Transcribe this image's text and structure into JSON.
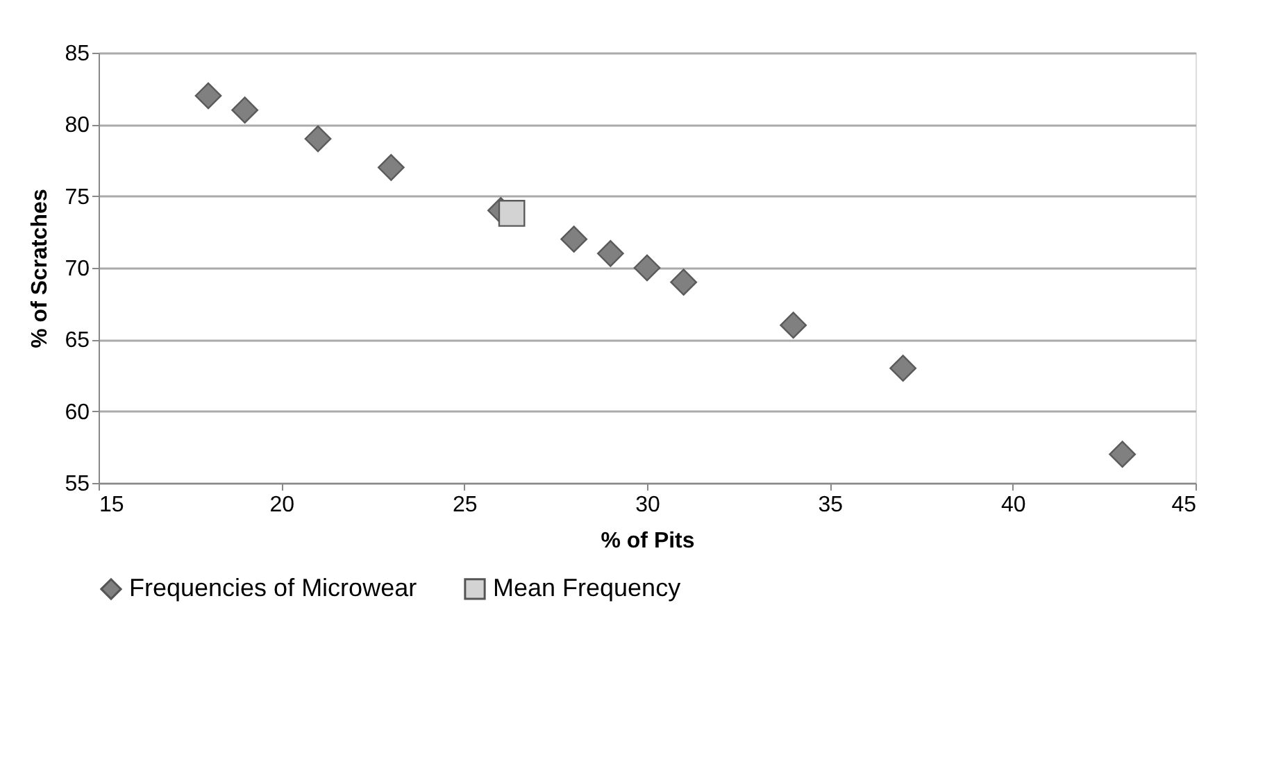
{
  "chart_data": {
    "type": "scatter",
    "xlabel": "% of Pits",
    "ylabel": "% of Scratches",
    "series": [
      {
        "name": "Frequencies of Microwear",
        "color": "#808080",
        "marker": "diamond",
        "x": [
          18,
          19,
          21,
          23,
          26,
          28,
          29,
          30,
          31,
          34,
          37,
          43
        ],
        "values": [
          82,
          81,
          79,
          77,
          74,
          72,
          71,
          70,
          69,
          66,
          63,
          57
        ]
      },
      {
        "name": "Mean Frequency",
        "color": "#d3d3d3",
        "marker": "square",
        "x": [
          26.3
        ],
        "values": [
          73.8
        ]
      }
    ],
    "xlim": [
      15,
      45
    ],
    "xticks": [
      15,
      20,
      25,
      30,
      35,
      40,
      45
    ],
    "ylim": [
      55,
      85
    ],
    "yticks": [
      55,
      60,
      65,
      70,
      75,
      80,
      85
    ],
    "grid": "y",
    "legend": "bottom"
  }
}
